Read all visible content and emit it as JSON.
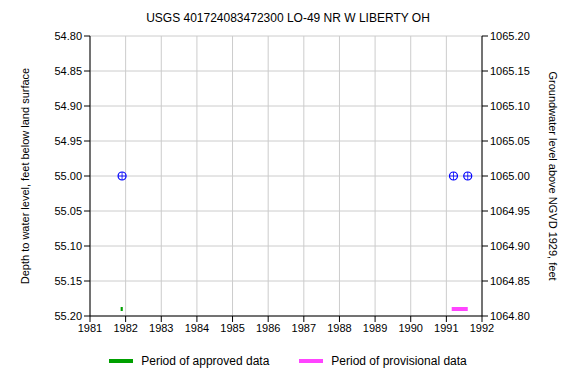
{
  "chart_data": {
    "type": "scatter",
    "title": "USGS 401724083472300 LO-49 NR W LIBERTY OH",
    "y_label": "Depth to water level, feet below land surface",
    "y2_label": "Groundwater level above NGVD 1929, feet",
    "xlim": [
      1981,
      1992
    ],
    "xticks": [
      1981,
      1982,
      1983,
      1984,
      1985,
      1986,
      1987,
      1988,
      1989,
      1990,
      1991,
      1992
    ],
    "ylim": [
      55.2,
      54.8
    ],
    "yticks": [
      {
        "value": 54.8,
        "label": "54.80"
      },
      {
        "value": 54.85,
        "label": "54.85"
      },
      {
        "value": 54.9,
        "label": "54.90"
      },
      {
        "value": 54.95,
        "label": "54.95"
      },
      {
        "value": 55.0,
        "label": "55.00"
      },
      {
        "value": 55.05,
        "label": "55.05"
      },
      {
        "value": 55.1,
        "label": "55.10"
      },
      {
        "value": 55.15,
        "label": "55.15"
      },
      {
        "value": 55.2,
        "label": "55.20"
      }
    ],
    "y2lim": [
      1064.8,
      1065.2
    ],
    "y2ticks": [
      {
        "value": 1064.8,
        "label": "1064.80"
      },
      {
        "value": 1064.85,
        "label": "1064.85"
      },
      {
        "value": 1064.9,
        "label": "1064.90"
      },
      {
        "value": 1064.95,
        "label": "1064.95"
      },
      {
        "value": 1065.0,
        "label": "1065.00"
      },
      {
        "value": 1065.05,
        "label": "1065.05"
      },
      {
        "value": 1065.1,
        "label": "1065.10"
      },
      {
        "value": 1065.15,
        "label": "1065.15"
      },
      {
        "value": 1065.2,
        "label": "1065.20"
      }
    ],
    "grid": true,
    "series": [
      {
        "type": "scatter",
        "marker": "circle",
        "color": "#0000ff",
        "x": [
          1981.9,
          1991.2,
          1991.6
        ],
        "values": [
          55.0,
          55.0,
          55.0
        ]
      },
      {
        "name": "Period of approved data",
        "type": "line",
        "color": "#00a000",
        "x": [
          1981.86,
          1981.92
        ],
        "values": [
          55.19,
          55.19
        ]
      },
      {
        "name": "Period of provisional data",
        "type": "line",
        "color": "#ff44ff",
        "x": [
          1991.15,
          1991.6
        ],
        "values": [
          55.19,
          55.19
        ]
      }
    ]
  }
}
